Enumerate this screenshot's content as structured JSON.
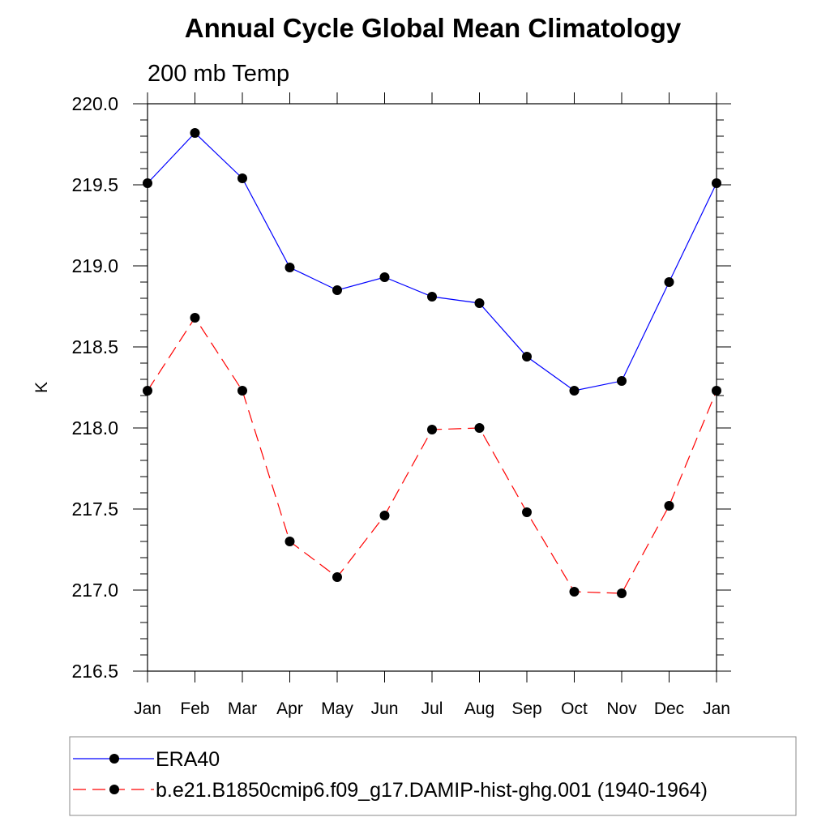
{
  "chart_data": {
    "type": "line",
    "title": "Annual Cycle Global Mean Climatology",
    "subtitle": "200 mb Temp",
    "xlabel": "",
    "ylabel": "K",
    "categories": [
      "Jan",
      "Feb",
      "Mar",
      "Apr",
      "May",
      "Jun",
      "Jul",
      "Aug",
      "Sep",
      "Oct",
      "Nov",
      "Dec",
      "Jan"
    ],
    "ylim": [
      216.5,
      220.0
    ],
    "yticks": [
      "216.5",
      "217.0",
      "217.5",
      "218.0",
      "218.5",
      "219.0",
      "219.5",
      "220.0"
    ],
    "grid": false,
    "legend_position": "bottom",
    "series": [
      {
        "name": "ERA40",
        "color": "#0000ff",
        "dash": "solid",
        "values": [
          219.51,
          219.82,
          219.54,
          218.99,
          218.85,
          218.93,
          218.81,
          218.77,
          218.44,
          218.23,
          218.29,
          218.9,
          219.51
        ]
      },
      {
        "name": "b.e21.B1850cmip6.f09_g17.DAMIP-hist-ghg.001 (1940-1964)",
        "color": "#ff0000",
        "dash": "dashed",
        "values": [
          218.23,
          218.68,
          218.23,
          217.3,
          217.08,
          217.46,
          217.99,
          218.0,
          217.48,
          216.99,
          216.98,
          217.52,
          218.23
        ]
      }
    ]
  }
}
